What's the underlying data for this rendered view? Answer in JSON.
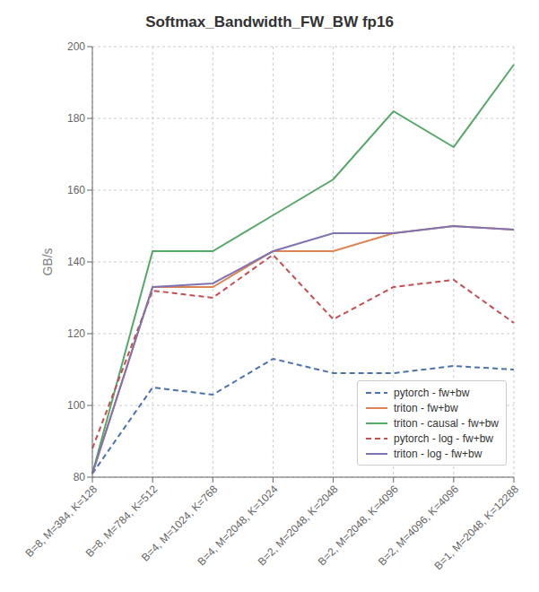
{
  "chart_data": {
    "type": "line",
    "title": "Softmax_Bandwidth_FW_BW fp16",
    "ylabel": "GB/s",
    "categories": [
      "B=8, M=384, K=128",
      "B=8, M=784, K=512",
      "B=4, M=1024, K=768",
      "B=4, M=2048, K=1024",
      "B=2, M=2048, K=2048",
      "B=2, M=2048, K=4096",
      "B=2, M=4096, K=4096",
      "B=1, M=2048, K=12288"
    ],
    "series": [
      {
        "name": "pytorch - fw+bw",
        "color": "#4c72b0",
        "line_style": "dashed",
        "values": [
          81,
          105,
          103,
          113,
          109,
          109,
          111,
          110
        ]
      },
      {
        "name": "triton - fw+bw",
        "color": "#dd8452",
        "line_style": "solid",
        "values": [
          81,
          133,
          133,
          143,
          143,
          148,
          150,
          149
        ]
      },
      {
        "name": "triton - causal - fw+bw",
        "color": "#55a868",
        "line_style": "solid",
        "values": [
          81,
          143,
          143,
          153,
          163,
          182,
          172,
          195
        ]
      },
      {
        "name": "pytorch - log - fw+bw",
        "color": "#c44e52",
        "line_style": "dashed",
        "values": [
          88,
          132,
          130,
          142,
          124,
          133,
          135,
          123
        ]
      },
      {
        "name": "triton - log - fw+bw",
        "color": "#8172b2",
        "line_style": "solid",
        "values": [
          81,
          133,
          134,
          143,
          148,
          148,
          150,
          149
        ]
      }
    ],
    "ylim": [
      80,
      200
    ],
    "yticks": [
      80,
      100,
      120,
      140,
      160,
      180,
      200
    ],
    "grid": true,
    "legend": "lower right"
  }
}
